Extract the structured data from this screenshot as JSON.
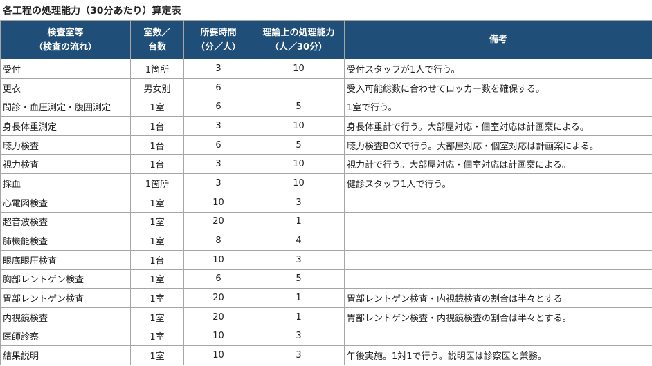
{
  "title": "各工程の処理能力（30分あたり）算定表",
  "colors": {
    "header_bg": "#1f4e79",
    "header_text": "#ffffff",
    "border": "#a6a6a6"
  },
  "headers": [
    "検査室等\n（検査の流れ）",
    "室数／\n台数",
    "所要時間\n（分／人）",
    "理論上の処理能力\n（人／30分）",
    "備考"
  ],
  "rows": [
    [
      "受付",
      "1箇所",
      "3",
      "10",
      "受付スタッフが1人で行う。"
    ],
    [
      "更衣",
      "男女別",
      "6",
      "",
      "受入可能総数に合わせてロッカー数を確保する。"
    ],
    [
      "問診・血圧測定・腹囲測定",
      "1室",
      "6",
      "5",
      "1室で行う。"
    ],
    [
      "身長体重測定",
      "1台",
      "3",
      "10",
      "身長体重計で行う。大部屋対応・個室対応は計画案による。"
    ],
    [
      "聴力検査",
      "1台",
      "6",
      "5",
      "聴力検査BOXで行う。大部屋対応・個室対応は計画案による。"
    ],
    [
      "視力検査",
      "1台",
      "3",
      "10",
      "視力計で行う。大部屋対応・個室対応は計画案による。"
    ],
    [
      "採血",
      "1箇所",
      "3",
      "10",
      "健診スタッフ1人で行う。"
    ],
    [
      "心電図検査",
      "1室",
      "10",
      "3",
      ""
    ],
    [
      "超音波検査",
      "1室",
      "20",
      "1",
      ""
    ],
    [
      "肺機能検査",
      "1室",
      "8",
      "4",
      ""
    ],
    [
      "眼底眼圧検査",
      "1台",
      "10",
      "3",
      ""
    ],
    [
      "胸部レントゲン検査",
      "1室",
      "6",
      "5",
      ""
    ],
    [
      "胃部レントゲン検査",
      "1室",
      "20",
      "1",
      "胃部レントゲン検査・内視鏡検査の割合は半々とする。"
    ],
    [
      "内視鏡検査",
      "1室",
      "20",
      "1",
      "胃部レントゲン検査・内視鏡検査の割合は半々とする。"
    ],
    [
      "医師診察",
      "1室",
      "10",
      "3",
      ""
    ],
    [
      "結果説明",
      "1室",
      "10",
      "3",
      "午後実施。1対1で行う。説明医は診察医と兼務。"
    ]
  ]
}
